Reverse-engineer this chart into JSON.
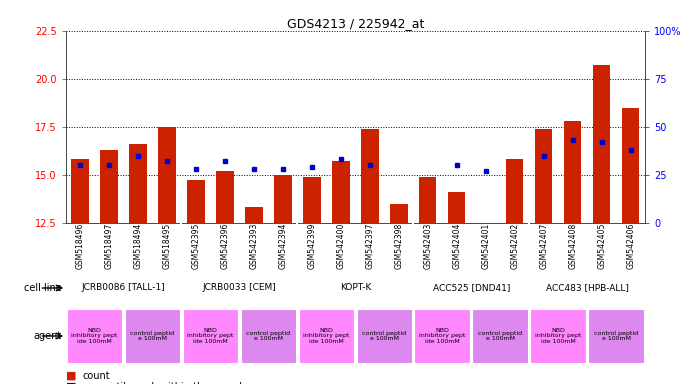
{
  "title": "GDS4213 / 225942_at",
  "samples": [
    "GSM518496",
    "GSM518497",
    "GSM518494",
    "GSM518495",
    "GSM542395",
    "GSM542396",
    "GSM542393",
    "GSM542394",
    "GSM542399",
    "GSM542400",
    "GSM542397",
    "GSM542398",
    "GSM542403",
    "GSM542404",
    "GSM542401",
    "GSM542402",
    "GSM542407",
    "GSM542408",
    "GSM542405",
    "GSM542406"
  ],
  "counts": [
    15.8,
    16.3,
    16.6,
    17.5,
    14.7,
    15.2,
    13.3,
    15.0,
    14.9,
    15.7,
    17.4,
    13.5,
    14.9,
    14.1,
    12.2,
    15.8,
    17.4,
    17.8,
    20.7,
    18.5
  ],
  "percentiles": [
    30,
    30,
    35,
    32,
    28,
    32,
    28,
    28,
    29,
    33,
    30,
    0,
    0,
    30,
    27,
    0,
    35,
    43,
    42,
    38
  ],
  "cell_lines": [
    {
      "label": "JCRB0086 [TALL-1]",
      "start": 0,
      "end": 4
    },
    {
      "label": "JCRB0033 [CEM]",
      "start": 4,
      "end": 8
    },
    {
      "label": "KOPT-K",
      "start": 8,
      "end": 12
    },
    {
      "label": "ACC525 [DND41]",
      "start": 12,
      "end": 16
    },
    {
      "label": "ACC483 [HPB-ALL]",
      "start": 16,
      "end": 20
    }
  ],
  "agents": [
    {
      "label": "NBD\ninhibitory pept\nide 100mM",
      "start": 0,
      "end": 2,
      "color": "#ff88ff"
    },
    {
      "label": "control peptid\ne 100mM",
      "start": 2,
      "end": 4,
      "color": "#dd88ee"
    },
    {
      "label": "NBD\ninhibitory pept\nide 100mM",
      "start": 4,
      "end": 6,
      "color": "#ff88ff"
    },
    {
      "label": "control peptid\ne 100mM",
      "start": 6,
      "end": 8,
      "color": "#dd88ee"
    },
    {
      "label": "NBD\ninhibitory pept\nide 100mM",
      "start": 8,
      "end": 10,
      "color": "#ff88ff"
    },
    {
      "label": "control peptid\ne 100mM",
      "start": 10,
      "end": 12,
      "color": "#dd88ee"
    },
    {
      "label": "NBD\ninhibitory pept\nide 100mM",
      "start": 12,
      "end": 14,
      "color": "#ff88ff"
    },
    {
      "label": "control peptid\ne 100mM",
      "start": 14,
      "end": 16,
      "color": "#dd88ee"
    },
    {
      "label": "NBD\ninhibitory pept\nide 100mM",
      "start": 16,
      "end": 18,
      "color": "#ff88ff"
    },
    {
      "label": "control peptid\ne 100mM",
      "start": 18,
      "end": 20,
      "color": "#dd88ee"
    }
  ],
  "ylim_left": [
    12.5,
    22.5
  ],
  "ylim_right": [
    0,
    100
  ],
  "yticks_left": [
    12.5,
    15.0,
    17.5,
    20.0,
    22.5
  ],
  "yticks_right": [
    0,
    25,
    50,
    75,
    100
  ],
  "bar_color": "#cc2200",
  "dot_color": "#0000cc",
  "cell_line_color": "#66ee88",
  "xticklabel_bg": "#cccccc",
  "bg_color": "#ffffff"
}
